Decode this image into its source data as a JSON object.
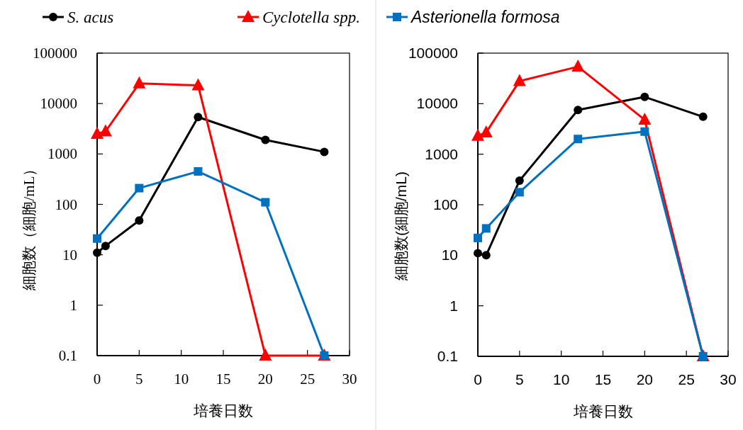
{
  "chart_data": [
    {
      "type": "line",
      "xlabel": "培養日数",
      "ylabel": "細胞数（細胞/mL）",
      "log": "y",
      "xlim": [
        0,
        30
      ],
      "xticks": [
        0,
        5,
        10,
        15,
        20,
        25,
        30
      ],
      "ylim": [
        0.1,
        100000
      ],
      "yticks": [
        0.1,
        1,
        10,
        100,
        1000,
        10000,
        100000
      ],
      "grid": false,
      "legend": "top",
      "series": [
        {
          "name": "S. acus",
          "color": "#000000",
          "marker": "circle",
          "x": [
            0,
            1,
            5,
            12,
            20,
            27
          ],
          "values": [
            11,
            15,
            48,
            5400,
            1900,
            1100
          ]
        },
        {
          "name": "Cyclotella spp.",
          "color": "#ff0000",
          "marker": "triangle",
          "x": [
            0,
            1,
            5,
            12,
            20,
            27
          ],
          "values": [
            2500,
            2800,
            25000,
            23000,
            0.1,
            0.1
          ]
        },
        {
          "name": "Asterionella formosa",
          "color": "#0070c0",
          "marker": "square",
          "x": [
            0,
            5,
            12,
            20,
            27
          ],
          "values": [
            21,
            210,
            450,
            110,
            0.1
          ]
        }
      ]
    },
    {
      "type": "line",
      "xlabel": "培養日数",
      "ylabel": "細胞数(細胞/mL)",
      "log": "y",
      "xlim": [
        0,
        30
      ],
      "xticks": [
        0,
        5,
        10,
        15,
        20,
        25,
        30
      ],
      "ylim": [
        0.1,
        100000
      ],
      "yticks": [
        0.1,
        1,
        10,
        100,
        1000,
        10000,
        100000
      ],
      "grid": false,
      "series": [
        {
          "color": "#000000",
          "marker": "circle",
          "x": [
            0,
            1,
            5,
            12,
            20,
            27
          ],
          "values": [
            11,
            10,
            300,
            7500,
            13600,
            5500
          ]
        },
        {
          "color": "#ff0000",
          "marker": "triangle",
          "x": [
            0,
            1,
            5,
            12,
            20,
            27
          ],
          "values": [
            2300,
            2700,
            28000,
            54000,
            4800,
            0.1
          ]
        },
        {
          "color": "#0070c0",
          "marker": "square",
          "x": [
            0,
            1,
            5,
            12,
            20,
            27
          ],
          "values": [
            22,
            34,
            177,
            2000,
            2800,
            0.1
          ]
        }
      ]
    }
  ]
}
